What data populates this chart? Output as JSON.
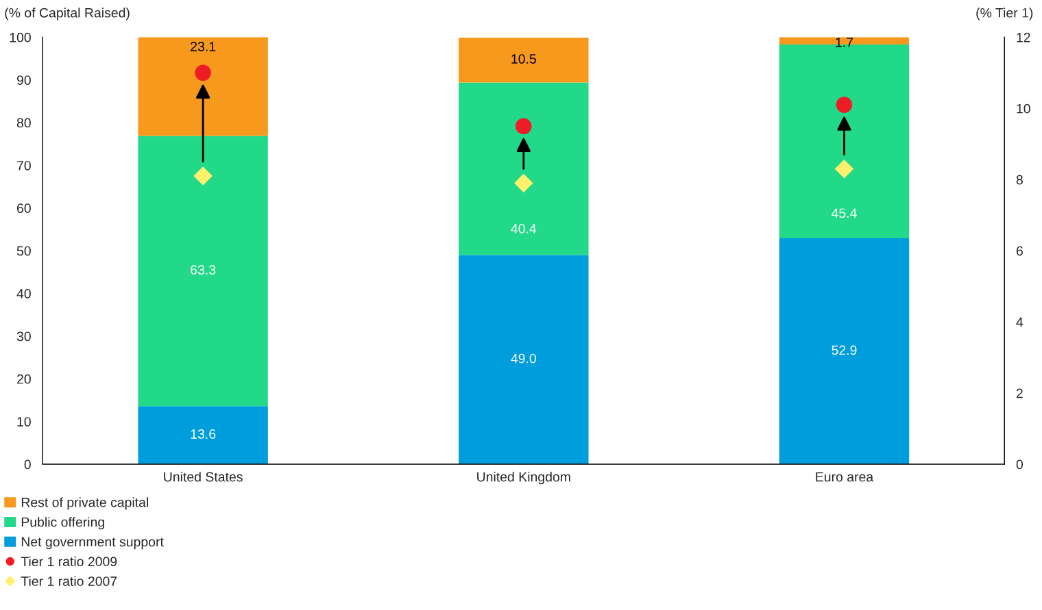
{
  "chart_data": {
    "type": "bar",
    "stacked": true,
    "categories": [
      "United States",
      "United Kingdom",
      "Euro area"
    ],
    "ylabel": "(% of Capital Raised)",
    "y2label": "(% Tier 1)",
    "ylim": [
      0,
      100
    ],
    "yticks": [
      0,
      10,
      20,
      30,
      40,
      50,
      60,
      70,
      80,
      90,
      100
    ],
    "y2lim": [
      0,
      12
    ],
    "y2ticks": [
      0,
      2,
      4,
      6,
      8,
      10,
      12
    ],
    "legend": "bottom left",
    "grid": false,
    "series": [
      {
        "name": "Net government support",
        "color": "#009ddc",
        "values": [
          13.6,
          49.0,
          52.9
        ],
        "value_labels": [
          "13.6",
          "49.0",
          "52.9"
        ]
      },
      {
        "name": "Public offering",
        "color": "#22d98a",
        "values": [
          63.3,
          40.4,
          45.4
        ],
        "value_labels": [
          "63.3",
          "40.4",
          "45.4"
        ]
      },
      {
        "name": "Rest of private capital",
        "color": "#f7991c",
        "values": [
          23.1,
          10.5,
          1.7
        ],
        "value_labels": [
          "23.1",
          "10.5",
          "1.7"
        ]
      },
      {
        "name": "Tier 1 ratio 2009",
        "type": "scatter",
        "axis": "y2",
        "marker": "circle",
        "color": "#ee1c25",
        "values": [
          11.0,
          9.5,
          10.1
        ]
      },
      {
        "name": "Tier 1 ratio 2007",
        "type": "scatter",
        "axis": "y2",
        "marker": "diamond",
        "color": "#fff06e",
        "values": [
          8.1,
          7.9,
          8.3
        ]
      }
    ]
  }
}
